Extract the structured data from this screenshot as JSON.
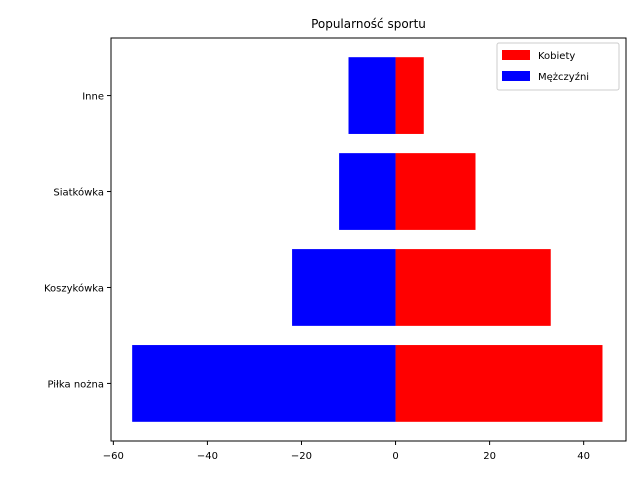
{
  "chart_data": {
    "type": "bar",
    "orientation": "horizontal",
    "title": "Popularność sportu",
    "xlabel": "",
    "ylabel": "",
    "categories": [
      "Piłka nożna",
      "Koszykówka",
      "Siatkówka",
      "Inne"
    ],
    "series": [
      {
        "name": "Kobiety",
        "color": "#ff0000",
        "values": [
          44,
          33,
          17,
          6
        ]
      },
      {
        "name": "Mężczyźni",
        "color": "#0000ff",
        "values": [
          -56,
          -22,
          -12,
          -10
        ]
      }
    ],
    "xlim": [
      -60.5,
      49
    ],
    "xticks": [
      -60,
      -40,
      -20,
      0,
      20,
      40
    ],
    "xtick_labels": [
      "−60",
      "−40",
      "−20",
      "0",
      "20",
      "40"
    ],
    "grid": false,
    "legend": {
      "placement": "top-right",
      "entries": [
        "Kobiety",
        "Mężczyźni"
      ]
    }
  }
}
